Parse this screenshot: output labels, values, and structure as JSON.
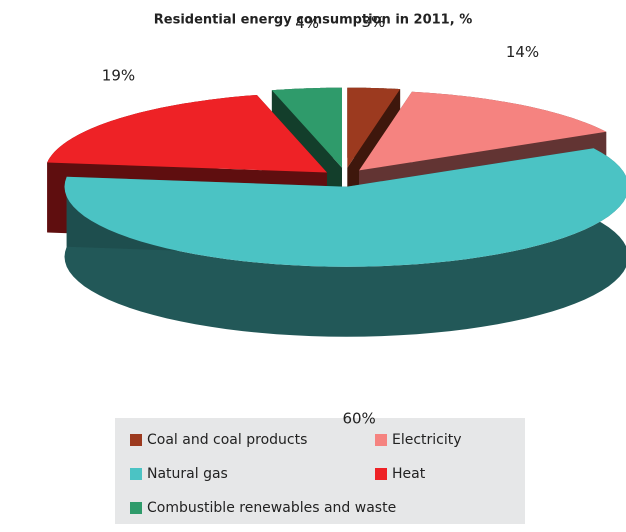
{
  "chart_data": {
    "type": "pie3d",
    "title": "Residential energy consumption in 2011, %",
    "categories": [
      "Coal and coal products",
      "Electricity",
      "Natural gas",
      "Heat",
      "Combustible renewables and waste"
    ],
    "values": [
      3,
      14,
      60,
      19,
      4
    ],
    "value_labels": [
      "3%",
      "14%",
      "60%",
      "19%",
      "4%"
    ],
    "colors": [
      "#9c3a1f",
      "#f58380",
      "#4bc3c4",
      "#ee2226",
      "#2f9b6b"
    ]
  }
}
